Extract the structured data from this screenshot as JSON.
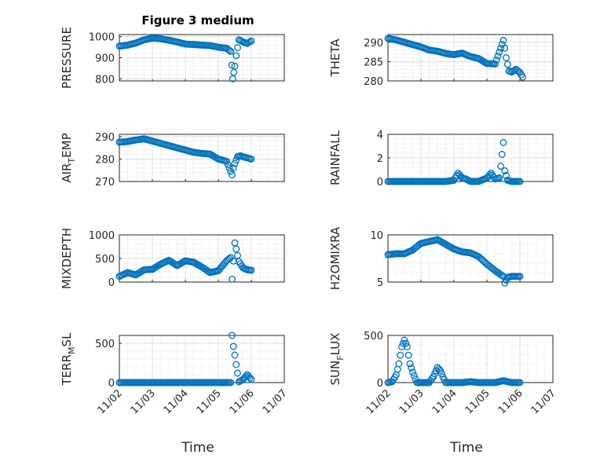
{
  "figure": {
    "title": "Figure 3 medium",
    "xlabel": "Time"
  },
  "colors": {
    "marker": "#0072BD",
    "axis": "#262626",
    "grid": "#d9d9d9"
  },
  "chart_data": [
    {
      "type": "scatter",
      "ylabel": "PRESSURE",
      "ylim": [
        790,
        1010
      ],
      "yticks": [
        "800",
        "900",
        "1000"
      ],
      "show_xticklabels": false,
      "xlim": [
        "11/02",
        "11/07"
      ],
      "x": [
        "11/02 00:00",
        "11/02 06:00",
        "11/02 12:00",
        "11/02 18:00",
        "11/03 00:00",
        "11/03 06:00",
        "11/03 12:00",
        "11/03 18:00",
        "11/04 00:00",
        "11/04 06:00",
        "11/04 12:00",
        "11/04 18:00",
        "11/05 00:00",
        "11/05 06:00",
        "11/05 09:00",
        "11/05 10:30",
        "11/05 12:00",
        "11/05 13:00",
        "11/05 15:00",
        "11/05 18:00",
        "11/05 21:00",
        "11/06 00:00"
      ],
      "y": [
        955,
        960,
        970,
        985,
        993,
        990,
        983,
        975,
        965,
        963,
        960,
        958,
        950,
        945,
        930,
        800,
        860,
        910,
        985,
        975,
        968,
        980
      ]
    },
    {
      "type": "scatter",
      "ylabel": "THETA",
      "ylim": [
        280,
        292
      ],
      "yticks": [
        "280",
        "285",
        "290"
      ],
      "show_xticklabels": false,
      "xlim": [
        "11/02",
        "11/07"
      ],
      "x": [
        "11/02 00:00",
        "11/02 06:00",
        "11/02 12:00",
        "11/02 18:00",
        "11/03 00:00",
        "11/03 06:00",
        "11/03 12:00",
        "11/03 18:00",
        "11/04 00:00",
        "11/04 06:00",
        "11/04 12:00",
        "11/04 18:00",
        "11/05 00:00",
        "11/05 06:00",
        "11/05 12:00",
        "11/05 13:00",
        "11/05 14:00",
        "11/05 16:00",
        "11/05 18:00",
        "11/05 21:00",
        "11/06 00:00",
        "11/06 02:00"
      ],
      "y": [
        291,
        290.6,
        290,
        289.4,
        288.8,
        288,
        287.7,
        287.1,
        286.8,
        287.2,
        286.3,
        285.8,
        284.5,
        284.4,
        290.5,
        288.5,
        286,
        282.6,
        282.3,
        283.0,
        282.2,
        281.0
      ]
    },
    {
      "type": "scatter",
      "ylabel": "AIR_TEMP",
      "ylim": [
        270,
        291
      ],
      "yticks": [
        "270",
        "280",
        "290"
      ],
      "show_xticklabels": false,
      "xlim": [
        "11/02",
        "11/07"
      ],
      "x": [
        "11/02 00:00",
        "11/02 06:00",
        "11/02 12:00",
        "11/02 18:00",
        "11/03 00:00",
        "11/03 06:00",
        "11/03 12:00",
        "11/03 18:00",
        "11/04 00:00",
        "11/04 06:00",
        "11/04 12:00",
        "11/04 18:00",
        "11/05 00:00",
        "11/05 06:00",
        "11/05 10:00",
        "11/05 11:00",
        "11/05 12:00",
        "11/05 14:00",
        "11/05 16:00",
        "11/05 18:00",
        "11/05 21:00",
        "11/06 00:00"
      ],
      "y": [
        287.5,
        287.8,
        288.5,
        289,
        288,
        287,
        286,
        285,
        284,
        283,
        282.5,
        282.2,
        280,
        279,
        273,
        276,
        278,
        281,
        281.5,
        281,
        280.5,
        280
      ]
    },
    {
      "type": "scatter",
      "ylabel": "RAINFALL",
      "ylim": [
        0,
        4
      ],
      "yticks": [
        "0",
        "2",
        "4"
      ],
      "show_xticklabels": false,
      "xlim": [
        "11/02",
        "11/07"
      ],
      "x": [
        "11/02 00:00",
        "11/02 06:00",
        "11/02 12:00",
        "11/02 18:00",
        "11/03 00:00",
        "11/03 06:00",
        "11/03 12:00",
        "11/03 18:00",
        "11/04 00:00",
        "11/04 03:00",
        "11/04 06:00",
        "11/04 09:00",
        "11/04 12:00",
        "11/04 18:00",
        "11/05 00:00",
        "11/05 03:00",
        "11/05 06:00",
        "11/05 09:00",
        "11/05 12:00",
        "11/05 13:00",
        "11/05 15:00",
        "11/05 18:00",
        "11/06 00:00"
      ],
      "y": [
        0,
        0,
        0,
        0,
        0,
        0,
        0,
        0,
        0.1,
        0.7,
        0.3,
        0.2,
        0,
        0,
        0.3,
        0.7,
        0.2,
        0.3,
        3.3,
        0.9,
        0.1,
        0,
        0
      ]
    },
    {
      "type": "scatter",
      "ylabel": "MIXDEPTH",
      "ylim": [
        0,
        1000
      ],
      "yticks": [
        "0",
        "500",
        "1000"
      ],
      "show_xticklabels": false,
      "xlim": [
        "11/02",
        "11/07"
      ],
      "x": [
        "11/02 00:00",
        "11/02 06:00",
        "11/02 12:00",
        "11/02 18:00",
        "11/03 00:00",
        "11/03 06:00",
        "11/03 12:00",
        "11/03 18:00",
        "11/04 00:00",
        "11/04 06:00",
        "11/04 12:00",
        "11/04 18:00",
        "11/05 00:00",
        "11/05 06:00",
        "11/05 09:00",
        "11/05 10:00",
        "11/05 12:00",
        "11/05 13:00",
        "11/05 15:00",
        "11/05 18:00",
        "11/05 21:00",
        "11/06 00:00"
      ],
      "y": [
        120,
        200,
        150,
        260,
        270,
        380,
        460,
        350,
        450,
        420,
        320,
        200,
        240,
        450,
        520,
        60,
        830,
        700,
        430,
        300,
        260,
        250
      ]
    },
    {
      "type": "scatter",
      "ylabel": "H2OMIXRA",
      "ylim": [
        5,
        10
      ],
      "yticks": [
        "5",
        "10"
      ],
      "show_xticklabels": false,
      "xlim": [
        "11/02",
        "11/07"
      ],
      "x": [
        "11/02 00:00",
        "11/02 06:00",
        "11/02 12:00",
        "11/02 18:00",
        "11/03 00:00",
        "11/03 06:00",
        "11/03 12:00",
        "11/03 18:00",
        "11/04 00:00",
        "11/04 06:00",
        "11/04 12:00",
        "11/04 18:00",
        "11/05 00:00",
        "11/05 06:00",
        "11/05 12:00",
        "11/05 13:00",
        "11/05 15:00",
        "11/05 18:00",
        "11/05 21:00",
        "11/06 00:00"
      ],
      "y": [
        7.9,
        8.0,
        8.0,
        8.4,
        9.1,
        9.3,
        9.5,
        9.0,
        8.5,
        8.2,
        8.1,
        7.7,
        6.9,
        6.2,
        5.6,
        4.9,
        5.5,
        5.6,
        5.6,
        5.6
      ]
    },
    {
      "type": "scatter",
      "ylabel": "TERR_MSL",
      "ylim": [
        0,
        600
      ],
      "yticks": [
        "0",
        "500"
      ],
      "show_xticklabels": true,
      "xlim": [
        "11/02",
        "11/07"
      ],
      "x": [
        "11/02 00:00",
        "11/02 06:00",
        "11/02 12:00",
        "11/02 18:00",
        "11/03 00:00",
        "11/03 06:00",
        "11/03 12:00",
        "11/03 18:00",
        "11/04 00:00",
        "11/04 06:00",
        "11/04 12:00",
        "11/04 18:00",
        "11/05 00:00",
        "11/05 06:00",
        "11/05 09:00",
        "11/05 10:00",
        "11/05 11:00",
        "11/05 12:00",
        "11/05 13:00",
        "11/05 15:00",
        "11/05 18:00",
        "11/05 21:00",
        "11/06 00:00"
      ],
      "y": [
        0,
        0,
        0,
        0,
        0,
        0,
        0,
        0,
        0,
        0,
        0,
        0,
        0,
        0,
        0,
        600,
        460,
        350,
        230,
        10,
        40,
        100,
        40
      ]
    },
    {
      "type": "scatter",
      "ylabel": "SUN_FLUX",
      "ylim": [
        0,
        500
      ],
      "yticks": [
        "0",
        "500"
      ],
      "show_xticklabels": true,
      "xlim": [
        "11/02",
        "11/07"
      ],
      "x": [
        "11/02 00:00",
        "11/02 03:00",
        "11/02 06:00",
        "11/02 08:00",
        "11/02 10:00",
        "11/02 12:00",
        "11/02 14:00",
        "11/02 16:00",
        "11/02 18:00",
        "11/02 21:00",
        "11/03 00:00",
        "11/03 06:00",
        "11/03 09:00",
        "11/03 12:00",
        "11/03 14:00",
        "11/03 16:00",
        "11/03 18:00",
        "11/04 00:00",
        "11/04 06:00",
        "11/04 12:00",
        "11/04 18:00",
        "11/05 00:00",
        "11/05 06:00",
        "11/05 12:00",
        "11/05 18:00",
        "11/06 00:00"
      ],
      "y": [
        0,
        10,
        80,
        200,
        380,
        450,
        380,
        200,
        110,
        0,
        0,
        0,
        60,
        160,
        130,
        60,
        0,
        0,
        0,
        10,
        0,
        0,
        0,
        20,
        0,
        0
      ]
    }
  ]
}
